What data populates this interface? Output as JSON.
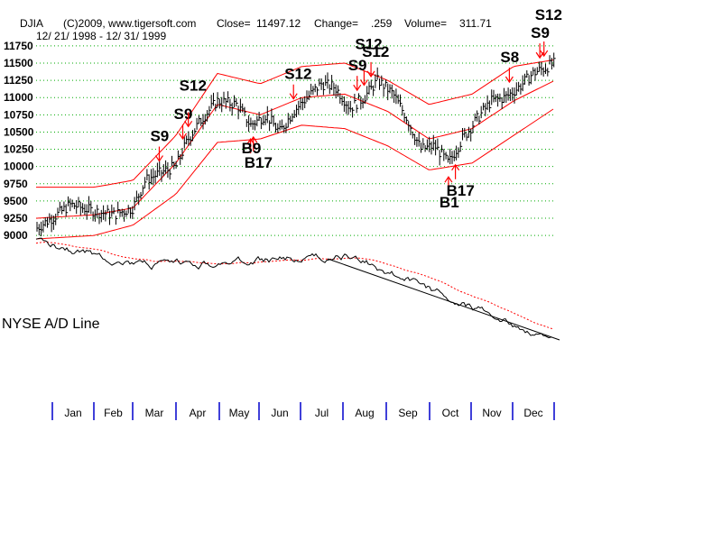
{
  "header": {
    "symbol": "DJIA",
    "copyright": "(C)2009, www.tigersoft.com",
    "close_label": "Close=",
    "close_value": "11497.12",
    "change_label": "Change=",
    "change_value": ".259",
    "volume_label": "Volume=",
    "volume_value": "311.71",
    "date_range": "12/ 21/ 1998 - 12/ 31/ 1999"
  },
  "colors": {
    "price": "#000000",
    "bands": "#ff0000",
    "grid": "#00aa00",
    "month_ticks": "#0000cc",
    "arrows": "#ff0000",
    "ad_line": "#000000",
    "ad_ma": "#ff0000",
    "trendline": "#000000"
  },
  "ad_label": "NYSE A/D Line",
  "chart_data": {
    "type": "line",
    "subtype": "ohlc-price-with-bands",
    "x_range": [
      "1998-12-21",
      "1999-12-31"
    ],
    "months": [
      "Jan",
      "Feb",
      "Mar",
      "Apr",
      "May",
      "Jun",
      "Jul",
      "Aug",
      "Sep",
      "Oct",
      "Nov",
      "Dec"
    ],
    "y_ticks": [
      9000,
      9250,
      9500,
      9750,
      10000,
      10250,
      10500,
      10750,
      11000,
      11250,
      11500,
      11750
    ],
    "y_tick_labels": [
      "9000",
      "9250",
      "9500",
      "9750",
      "10000",
      "10250",
      "10500",
      "10750",
      "11000",
      "11250",
      "11500",
      "11750"
    ],
    "ylim": [
      8950,
      11800
    ],
    "grid": "horizontal dotted",
    "series": [
      {
        "name": "",
        "role": "price-close",
        "dates": [
          "1998-12-21",
          "1999-01-05",
          "1999-01-15",
          "1999-02-01",
          "1999-02-15",
          "1999-03-01",
          "1999-03-10",
          "1999-03-20",
          "1999-04-01",
          "1999-04-10",
          "1999-04-20",
          "1999-05-01",
          "1999-05-15",
          "1999-05-25",
          "1999-06-05",
          "1999-06-15",
          "1999-06-25",
          "1999-07-05",
          "1999-07-15",
          "1999-07-25",
          "1999-08-05",
          "1999-08-15",
          "1999-08-25",
          "1999-09-05",
          "1999-09-15",
          "1999-09-25",
          "1999-10-05",
          "1999-10-15",
          "1999-10-25",
          "1999-11-05",
          "1999-11-15",
          "1999-11-25",
          "1999-12-05",
          "1999-12-15",
          "1999-12-31"
        ],
        "values": [
          9100,
          9300,
          9450,
          9350,
          9300,
          9400,
          9800,
          9900,
          10000,
          10400,
          10700,
          10950,
          10900,
          10600,
          10750,
          10500,
          10800,
          11000,
          11200,
          11150,
          10850,
          11000,
          11250,
          11050,
          10700,
          10250,
          10300,
          10050,
          10400,
          10700,
          10950,
          11000,
          11150,
          11350,
          11497
        ]
      },
      {
        "name": "",
        "role": "upper-band",
        "dates": [
          "1998-12-21",
          "1999-02-01",
          "1999-03-01",
          "1999-04-01",
          "1999-05-01",
          "1999-06-01",
          "1999-07-01",
          "1999-08-01",
          "1999-09-01",
          "1999-10-01",
          "1999-11-01",
          "1999-12-01",
          "1999-12-31"
        ],
        "values": [
          9700,
          9700,
          9800,
          10450,
          11350,
          11200,
          11450,
          11500,
          11250,
          10900,
          11050,
          11450,
          11550
        ]
      },
      {
        "name": "",
        "role": "middle-band",
        "dates": [
          "1998-12-21",
          "1999-02-01",
          "1999-03-01",
          "1999-04-01",
          "1999-05-01",
          "1999-06-01",
          "1999-07-01",
          "1999-08-01",
          "1999-09-01",
          "1999-10-01",
          "1999-11-01",
          "1999-12-01",
          "1999-12-31"
        ],
        "values": [
          9250,
          9300,
          9400,
          10050,
          10900,
          10750,
          11000,
          11050,
          10800,
          10400,
          10550,
          10950,
          11250
        ]
      },
      {
        "name": "",
        "role": "lower-band",
        "dates": [
          "1998-12-21",
          "1999-02-01",
          "1999-03-01",
          "1999-04-01",
          "1999-05-01",
          "1999-06-01",
          "1999-07-01",
          "1999-08-01",
          "1999-09-01",
          "1999-10-01",
          "1999-11-01",
          "1999-12-01",
          "1999-12-31"
        ],
        "values": [
          8950,
          9000,
          9150,
          9600,
          10350,
          10400,
          10600,
          10550,
          10300,
          9950,
          10050,
          10450,
          10850
        ]
      }
    ],
    "signals": [
      {
        "label": "S9",
        "date": "1999-03-20",
        "dir": "sell"
      },
      {
        "label": "S9",
        "date": "1999-04-06",
        "dir": "sell"
      },
      {
        "label": "S12",
        "date": "1999-04-10",
        "dir": "sell"
      },
      {
        "label": "S12",
        "date": "1999-06-25",
        "dir": "sell"
      },
      {
        "label": "B17",
        "date": "1999-05-27",
        "dir": "buy"
      },
      {
        "label": "B9",
        "date": "1999-05-25",
        "dir": "buy"
      },
      {
        "label": "S9",
        "date": "1999-08-10",
        "dir": "sell"
      },
      {
        "label": "S12",
        "date": "1999-08-15",
        "dir": "sell"
      },
      {
        "label": "S12",
        "date": "1999-08-20",
        "dir": "sell"
      },
      {
        "label": "B1",
        "date": "1999-10-15",
        "dir": "buy"
      },
      {
        "label": "B17",
        "date": "1999-10-20",
        "dir": "buy"
      },
      {
        "label": "S8",
        "date": "1999-11-28",
        "dir": "sell"
      },
      {
        "label": "S9",
        "date": "1999-12-20",
        "dir": "sell"
      },
      {
        "label": "S12",
        "date": "1999-12-23",
        "dir": "sell"
      }
    ]
  }
}
